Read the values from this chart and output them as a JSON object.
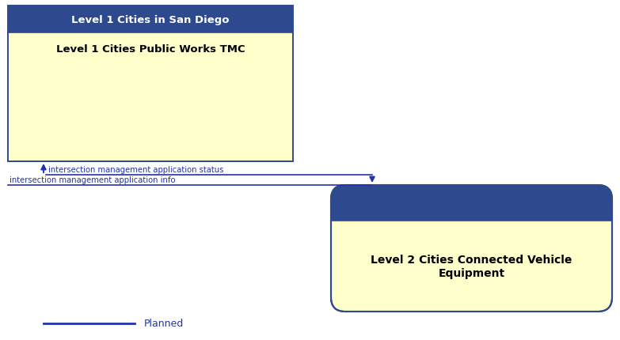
{
  "bg_color": "#ffffff",
  "arrow_color": "#2233aa",
  "box1_header_color": "#2e4a8e",
  "box1_header_text_color": "#ffffff",
  "box1_body_color": "#ffffcc",
  "box1_body_text_color": "#000000",
  "box1_border_color": "#2e4a8e",
  "box1_header_label": "Level 1 Cities in San Diego",
  "box1_body_label": "Level 1 Cities Public Works TMC",
  "box2_header_color": "#2e4a8e",
  "box2_body_color": "#ffffcc",
  "box2_body_text_color": "#000000",
  "box2_border_color": "#2e4a8e",
  "box2_body_label": "Level 2 Cities Connected Vehicle\nEquipment",
  "line1_label": "intersection management application status",
  "line2_label": "intersection management application info",
  "legend_label": "Planned",
  "legend_color": "#2233aa"
}
